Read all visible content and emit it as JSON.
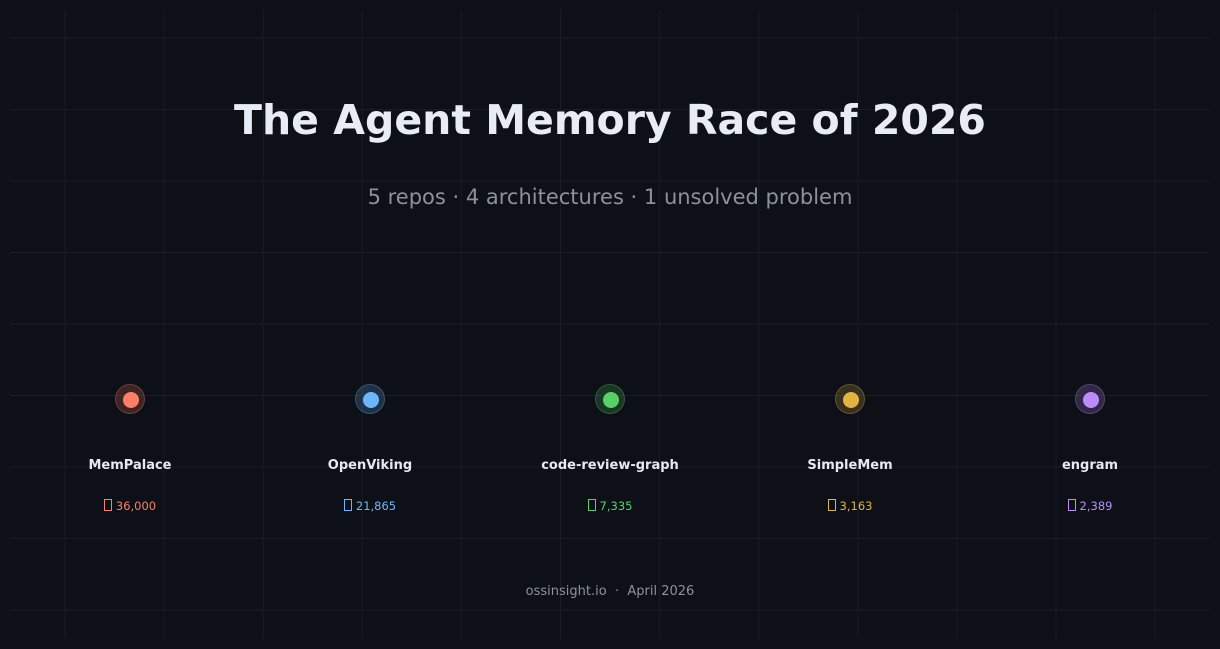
{
  "header": {
    "title": "The Agent Memory Race of 2026",
    "subtitle": "5 repos · 4 architectures · 1 unsolved problem"
  },
  "repos": [
    {
      "name": "MemPalace",
      "stars": "36,000",
      "color": "#ff7f66",
      "icon": "star-icon"
    },
    {
      "name": "OpenViking",
      "stars": "21,865",
      "color": "#6cb6ff",
      "icon": "star-icon"
    },
    {
      "name": "code-review-graph",
      "stars": "7,335",
      "color": "#56d364",
      "icon": "star-icon"
    },
    {
      "name": "SimpleMem",
      "stars": "3,163",
      "color": "#e3b341",
      "icon": "star-icon"
    },
    {
      "name": "engram",
      "stars": "2,389",
      "color": "#bc8cff",
      "icon": "star-icon"
    }
  ],
  "footer": {
    "source": "ossinsight.io",
    "separator": "·",
    "date": "April 2026"
  }
}
